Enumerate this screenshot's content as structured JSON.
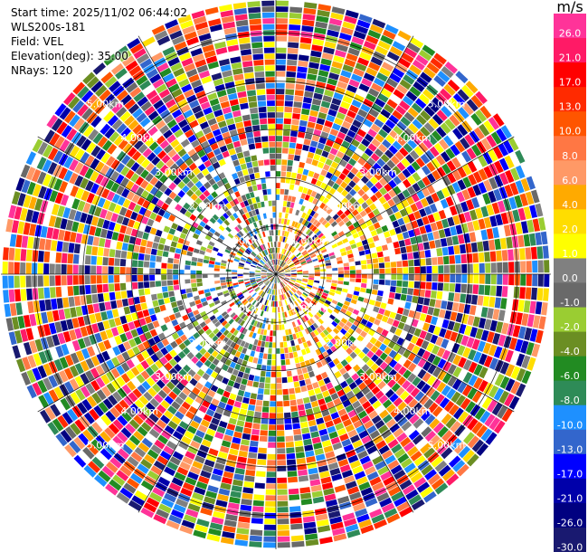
{
  "info": {
    "start_time": "Start time: 2025/11/02 06:44:02",
    "instrument": "WLS200s-181",
    "field": "Field: VEL",
    "elevation": "Elevation(deg): 35.00",
    "nrays": "NRays: 120"
  },
  "chart_data": {
    "type": "heatmap",
    "projection": "polar (PPI)",
    "field": "VEL",
    "unit": "m/s",
    "n_rays": 120,
    "range_rings_km": [
      1.0,
      2.0,
      3.0,
      4.0,
      5.0
    ],
    "range_labels": [
      "1.00km",
      "2.00km",
      "3.00km",
      "4.00km",
      "5.00km"
    ],
    "max_range_km": 5.7,
    "colorbar": {
      "title": "m/s",
      "labels": [
        "26.0",
        "21.0",
        "17.0",
        "13.0",
        "10.0",
        "8.0",
        "6.0",
        "4.0",
        "2.0",
        "1.0",
        "0.0",
        "-1.0",
        "-2.0",
        "-4.0",
        "-6.0",
        "-8.0",
        "-10.0",
        "-13.0",
        "-17.0",
        "-21.0",
        "-26.0",
        "-30.0"
      ],
      "colors": [
        "#ff3399",
        "#ff1a66",
        "#ff0000",
        "#ff2a00",
        "#ff5500",
        "#ff7744",
        "#ff9966",
        "#ffaa00",
        "#ffdd00",
        "#ffff00",
        "#808080",
        "#696969",
        "#9acd32",
        "#6b8e23",
        "#228b22",
        "#2e8b57",
        "#1e90ff",
        "#3366cc",
        "#0000ff",
        "#0000aa",
        "#000080",
        "#191970"
      ]
    }
  }
}
